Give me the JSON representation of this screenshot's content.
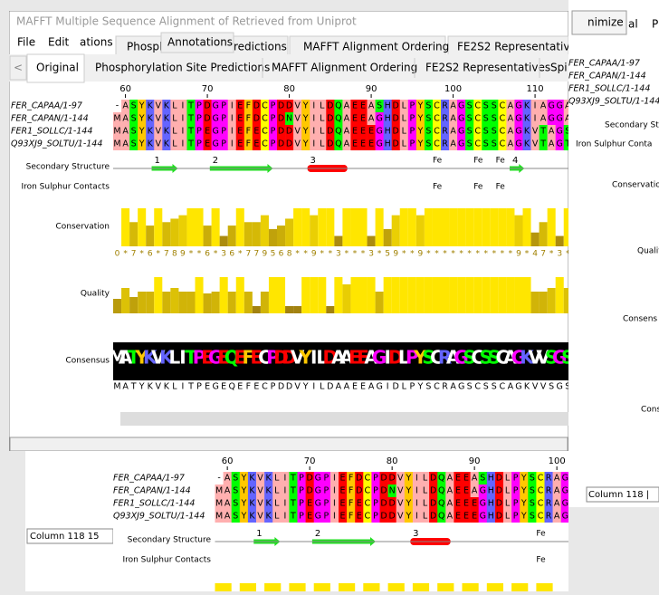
{
  "main_window": {
    "title": "MAFFT Multiple Sequence Alignment of Retrieved from Uniprot",
    "menu": [
      "File",
      "Edit",
      "ations"
    ],
    "scroll_left": "<",
    "tabs": [
      "Original",
      "Phosphorylation Site Predictions",
      "MAFFT Alignment Ordering",
      "FE2S2 Representatives",
      "Spi"
    ]
  },
  "back_window_tabs": {
    "tabs": [
      "Phosph",
      "redictions",
      "MAFFT Alignment Ordering",
      "FE2S2 Representatives"
    ],
    "floating_tab": "Annotations"
  },
  "ruler": [
    "60",
    "70",
    "80",
    "90",
    "100",
    "110"
  ],
  "sequences": [
    {
      "name": "FER_CAPAA/1-97",
      "residues": "-ASYKVKLITPDGPIEFDCPDDVYILDQAEEASHDLPYSCRAGSCSSCAGKIAGGA"
    },
    {
      "name": "FER_CAPAN/1-144",
      "residues": "MASYKVKLITPDGPIEFDCPDNVYILDQAEEAGHDLPYSCRAGSCSSCAGKIAGGA"
    },
    {
      "name": "FER1_SOLLC/1-144",
      "residues": "MASYKVKLITPEGPIEFECPDDVYILDQAEEEGHDLPYSCRAGSCSSCAGKVTAGS"
    },
    {
      "name": "Q93XJ9_SOLTU/1-144",
      "residues": "MASYKVKLITPEGPIEFECPDDVYILDQAEEEGHDLPYSCRAGSCSSCAGKVTAGT"
    }
  ],
  "annotation_labels": {
    "secondary_structure": "Secondary Structure",
    "iron_sulphur": "Iron Sulphur Contacts",
    "conservation": "Conservation",
    "quality": "Quality",
    "consensus": "Consensus"
  },
  "secondary_structure_labels": [
    "1",
    "2",
    "3",
    "4"
  ],
  "secondary_structure_fe": [
    "Fe",
    "Fe",
    "Fe"
  ],
  "iron_contacts": [
    "Fe",
    "Fe",
    "Fe"
  ],
  "conservation": {
    "values": [
      0,
      11,
      7,
      11,
      6,
      11,
      7,
      8,
      9,
      11,
      11,
      6,
      11,
      3,
      6,
      11,
      7,
      7,
      9,
      5,
      6,
      8,
      11,
      11,
      9,
      11,
      11,
      3,
      11,
      11,
      11,
      3,
      11,
      5,
      9,
      11,
      11,
      9,
      11,
      11,
      11,
      11,
      11,
      11,
      11,
      11,
      11,
      11,
      11,
      9,
      11,
      4,
      7,
      11,
      3,
      11
    ],
    "labels": "0*7*6*789**6*36*779568**9**3***3*59**9***********9*47*3*"
  },
  "quality": [
    40,
    70,
    45,
    60,
    60,
    100,
    60,
    70,
    60,
    60,
    100,
    55,
    60,
    100,
    60,
    100,
    60,
    20,
    60,
    100,
    100,
    20,
    20,
    100,
    100,
    100,
    20,
    100,
    80,
    100,
    100,
    100,
    60,
    100,
    100,
    100,
    100,
    100,
    100,
    100,
    100,
    100,
    100,
    100,
    100,
    100,
    100,
    100,
    100,
    100,
    100,
    60,
    60,
    70,
    100,
    70
  ],
  "consensus": "MATYKVKLITPEGEQEFECPDDVYILDAAEEAGIDLPYSCRAGSCSSCAGKVVSGS",
  "right_window": {
    "button": "nimize",
    "tabs": [
      "al",
      "P"
    ],
    "labels": [
      "Secondary Structu",
      "Iron Sulphur Conta",
      "Conservatio",
      "Qualit",
      "Consens",
      "Cons"
    ],
    "status": "Column 118 |"
  },
  "bottom_window": {
    "ruler": [
      "60",
      "70",
      "80",
      "90",
      "100"
    ],
    "labels": [
      "Secondary Structure",
      "Iron Sulphur Contacts"
    ],
    "secondary_structure_labels": [
      "1",
      "2",
      "3"
    ],
    "secondary_structure_fe": [
      "Fe"
    ],
    "iron_contacts": [
      "Fe"
    ]
  },
  "left_status": "Column 118  15"
}
